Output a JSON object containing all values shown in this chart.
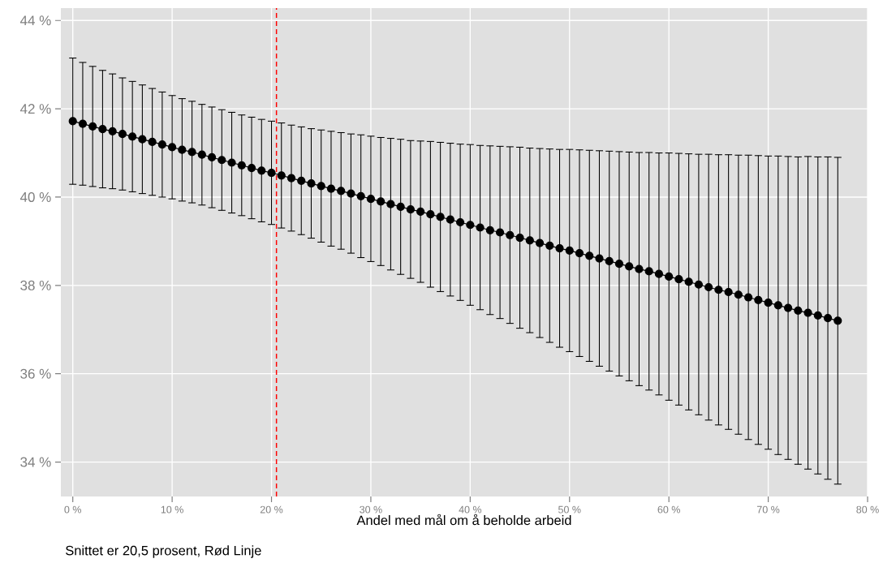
{
  "chart_data": {
    "type": "line",
    "xlabel": "Andel med mål om å beholde arbeid",
    "annotations": [
      "Snittet er 20,5 prosent, Rød Linje"
    ],
    "x": [
      0,
      1,
      2,
      3,
      4,
      5,
      6,
      7,
      8,
      9,
      10,
      11,
      12,
      13,
      14,
      15,
      16,
      17,
      18,
      19,
      20,
      21,
      22,
      23,
      24,
      25,
      26,
      27,
      28,
      29,
      30,
      31,
      32,
      33,
      34,
      35,
      36,
      37,
      38,
      39,
      40,
      41,
      42,
      43,
      44,
      45,
      46,
      47,
      48,
      49,
      50,
      51,
      52,
      53,
      54,
      55,
      56,
      57,
      58,
      59,
      60,
      61,
      62,
      63,
      64,
      65,
      66,
      67,
      68,
      69,
      70,
      71,
      72,
      73,
      74,
      75,
      76,
      77
    ],
    "series": [
      {
        "color": "#000000",
        "marker": "circle",
        "line_style": "solid",
        "values": [
          41.72,
          41.66,
          41.6,
          41.54,
          41.49,
          41.43,
          41.37,
          41.31,
          41.25,
          41.19,
          41.13,
          41.07,
          41.02,
          40.96,
          40.9,
          40.84,
          40.78,
          40.72,
          40.66,
          40.6,
          40.55,
          40.49,
          40.43,
          40.37,
          40.31,
          40.25,
          40.19,
          40.14,
          40.08,
          40.02,
          39.96,
          39.9,
          39.84,
          39.78,
          39.72,
          39.67,
          39.61,
          39.55,
          39.49,
          39.43,
          39.37,
          39.31,
          39.25,
          39.2,
          39.14,
          39.08,
          39.02,
          38.96,
          38.9,
          38.84,
          38.79,
          38.73,
          38.67,
          38.61,
          38.55,
          38.49,
          38.43,
          38.37,
          38.32,
          38.26,
          38.2,
          38.14,
          38.08,
          38.02,
          37.96,
          37.9,
          37.85,
          37.79,
          37.73,
          37.67,
          37.61,
          37.55,
          37.49,
          37.43,
          37.38,
          37.32,
          37.26,
          37.2
        ],
        "errors": [
          1.43,
          1.39,
          1.36,
          1.33,
          1.3,
          1.27,
          1.25,
          1.23,
          1.21,
          1.19,
          1.17,
          1.16,
          1.15,
          1.14,
          1.14,
          1.14,
          1.14,
          1.14,
          1.15,
          1.16,
          1.17,
          1.19,
          1.2,
          1.22,
          1.24,
          1.27,
          1.3,
          1.32,
          1.35,
          1.39,
          1.42,
          1.45,
          1.49,
          1.53,
          1.56,
          1.6,
          1.65,
          1.69,
          1.73,
          1.77,
          1.82,
          1.86,
          1.91,
          1.95,
          2.0,
          2.05,
          2.09,
          2.14,
          2.19,
          2.24,
          2.29,
          2.34,
          2.39,
          2.44,
          2.49,
          2.54,
          2.59,
          2.64,
          2.69,
          2.74,
          2.8,
          2.85,
          2.9,
          2.95,
          3.01,
          3.06,
          3.11,
          3.16,
          3.22,
          3.27,
          3.32,
          3.38,
          3.43,
          3.48,
          3.54,
          3.59,
          3.65,
          3.7
        ]
      }
    ],
    "xlim": [
      -1.2,
      80
    ],
    "ylim": [
      33.22,
      44.28
    ],
    "xticks": [
      {
        "value": 0,
        "label": "0 %"
      },
      {
        "value": 10,
        "label": "10 %"
      },
      {
        "value": 20,
        "label": "20 %"
      },
      {
        "value": 30,
        "label": "30 %"
      },
      {
        "value": 40,
        "label": "40 %"
      },
      {
        "value": 50,
        "label": "50 %"
      },
      {
        "value": 60,
        "label": "60 %"
      },
      {
        "value": 70,
        "label": "70 %"
      },
      {
        "value": 80,
        "label": "80 %"
      }
    ],
    "yticks": [
      {
        "value": 34,
        "label": "34 %"
      },
      {
        "value": 36,
        "label": "36 %"
      },
      {
        "value": 38,
        "label": "38 %"
      },
      {
        "value": 40,
        "label": "40 %"
      },
      {
        "value": 42,
        "label": "42 %"
      },
      {
        "value": 44,
        "label": "44 %"
      }
    ],
    "grid": true,
    "ref_lines": [
      {
        "axis": "x",
        "value": 20.5,
        "color": "#ff0000",
        "line_style": "dashed"
      }
    ]
  }
}
